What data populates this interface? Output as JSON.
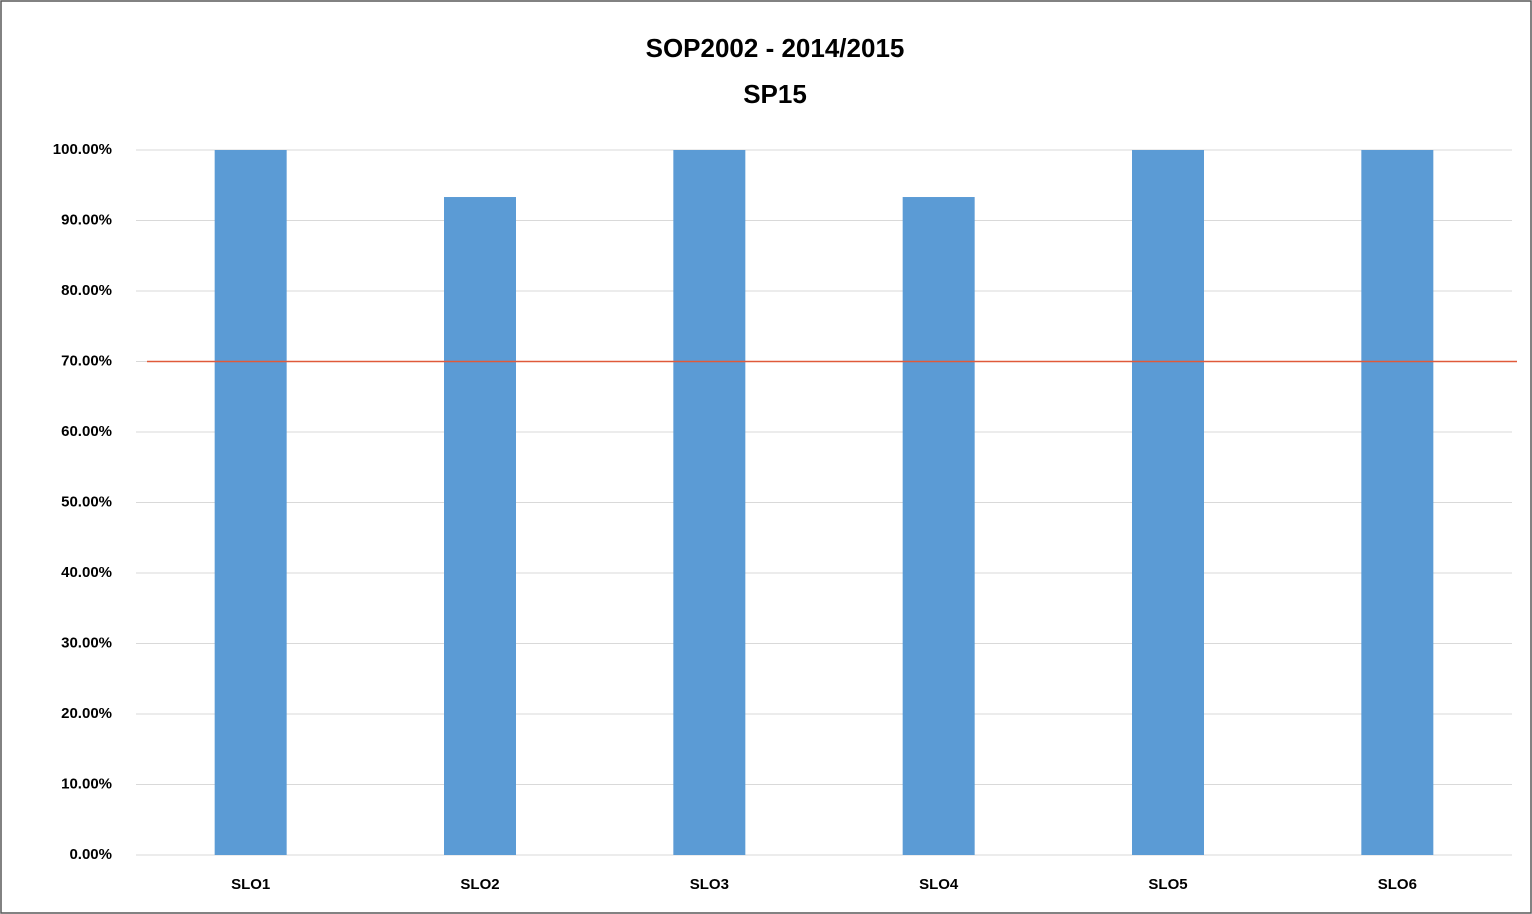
{
  "chart_data": {
    "type": "bar",
    "title": "SOP2002 - 2014/2015",
    "subtitle": "SP15",
    "categories": [
      "SLO1",
      "SLO2",
      "SLO3",
      "SLO4",
      "SLO5",
      "SLO6"
    ],
    "values": [
      100,
      93.33,
      100,
      93.33,
      100,
      100
    ],
    "color": "#5b9bd5",
    "ylim": [
      0,
      100
    ],
    "yticks": [
      {
        "value": 0,
        "label": "0.00%"
      },
      {
        "value": 10,
        "label": "10.00%"
      },
      {
        "value": 20,
        "label": "20.00%"
      },
      {
        "value": 30,
        "label": "30.00%"
      },
      {
        "value": 40,
        "label": "40.00%"
      },
      {
        "value": 50,
        "label": "50.00%"
      },
      {
        "value": 60,
        "label": "60.00%"
      },
      {
        "value": 70,
        "label": "70.00%"
      },
      {
        "value": 80,
        "label": "80.00%"
      },
      {
        "value": 90,
        "label": "90.00%"
      },
      {
        "value": 100,
        "label": "100.00%"
      }
    ],
    "grid": true,
    "reference_line": {
      "value": 70,
      "color": "#e05a3a"
    }
  }
}
